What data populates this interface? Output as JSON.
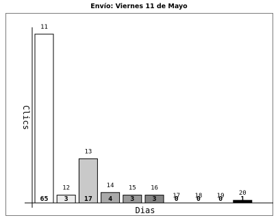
{
  "chart_data": {
    "type": "bar",
    "title": "Envío: Viernes 11 de Mayo",
    "xlabel": "Dias",
    "ylabel": "Clics",
    "categories": [
      "11",
      "12",
      "13",
      "14",
      "15",
      "16",
      "17",
      "18",
      "19",
      "20"
    ],
    "values": [
      65,
      3,
      17,
      4,
      3,
      3,
      0,
      0,
      0,
      1
    ],
    "ylim": [
      0,
      65
    ],
    "grid": false,
    "bar_colors": [
      "#ffffff",
      "#ececec",
      "#c9c9c9",
      "#a9a9a9",
      "#9a9a9a",
      "#868686",
      "#777777",
      "#6a6a6a",
      "#4a4a4a",
      "#000000"
    ]
  }
}
